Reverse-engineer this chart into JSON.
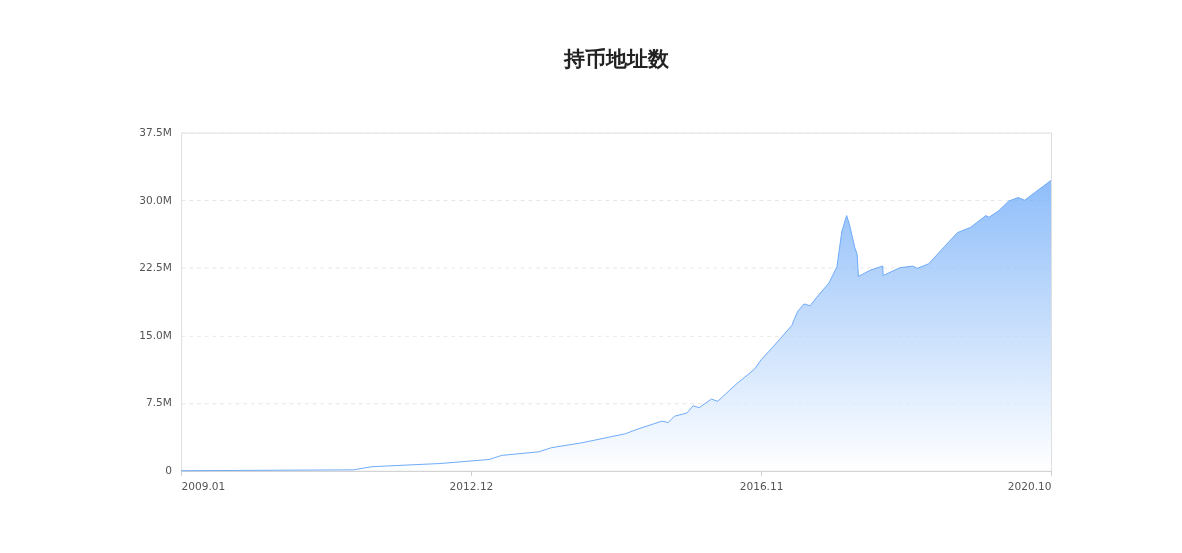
{
  "chart_data": {
    "type": "area",
    "title": "持币地址数",
    "x": [
      "2009-01-01",
      "2011-05-01",
      "2011-08-01",
      "2012-07-01",
      "2013-03-01",
      "2013-05-01",
      "2013-11-01",
      "2014-01-01",
      "2014-06-01",
      "2015-01-01",
      "2015-03-01",
      "2015-07-01",
      "2015-08-01",
      "2015-09-01",
      "2015-11-01",
      "2015-12-01",
      "2016-01-01",
      "2016-03-01",
      "2016-04-01",
      "2016-07-01",
      "2016-10-01",
      "2016-11-01",
      "2017-01-01",
      "2017-04-01",
      "2017-05-01",
      "2017-06-01",
      "2017-07-01",
      "2017-08-01",
      "2017-10-01",
      "2017-11-10",
      "2017-12-04",
      "2017-12-28",
      "2018-01-12",
      "2018-02-06",
      "2018-02-18",
      "2018-02-24",
      "2018-04-24",
      "2018-06-24",
      "2018-06-26",
      "2018-09-15",
      "2018-11-18",
      "2018-12-12",
      "2019-02-06",
      "2019-04-24",
      "2019-06-27",
      "2019-09-01",
      "2019-11-15",
      "2019-11-30",
      "2020-01-18",
      "2020-03-06",
      "2020-04-22",
      "2020-05-24",
      "2020-07-10",
      "2020-10-01"
    ],
    "series": [
      {
        "color": "#6aa8f8",
        "values": [
          0,
          100000,
          450000,
          800000,
          1250000,
          1700000,
          2100000,
          2550000,
          3100000,
          4100000,
          4600000,
          5500000,
          5350000,
          6050000,
          6400000,
          7200000,
          7000000,
          7950000,
          7700000,
          9600000,
          11300000,
          12300000,
          13800000,
          16100000,
          17700000,
          18500000,
          18300000,
          19200000,
          20800000,
          22600000,
          26500000,
          28300000,
          27200000,
          24750000,
          24000000,
          21550000,
          22250000,
          22700000,
          21650000,
          22500000,
          22700000,
          22450000,
          22950000,
          24850000,
          26400000,
          27000000,
          28300000,
          28100000,
          28850000,
          29900000,
          30300000,
          30000000,
          30800000,
          32200000
        ]
      }
    ],
    "xlim": [
      "2009-01-01",
      "2020-10-01"
    ],
    "xticks": [
      {
        "value": "2009-01-01",
        "label": "2009.01"
      },
      {
        "value": "2012-12-01",
        "label": "2012.12"
      },
      {
        "value": "2016-11-01",
        "label": "2016.11"
      },
      {
        "value": "2020-10-01",
        "label": "2020.10"
      }
    ],
    "ylim": [
      0,
      37500000
    ],
    "yticks": [
      0,
      {
        "value": 7500000,
        "label": "7.5M"
      },
      {
        "value": 15000000,
        "label": "15.0M"
      },
      {
        "value": 22500000,
        "label": "22.5M"
      },
      {
        "value": 30000000,
        "label": "30.0M"
      },
      {
        "value": 37500000,
        "label": "37.5M"
      }
    ],
    "grid": "y"
  }
}
